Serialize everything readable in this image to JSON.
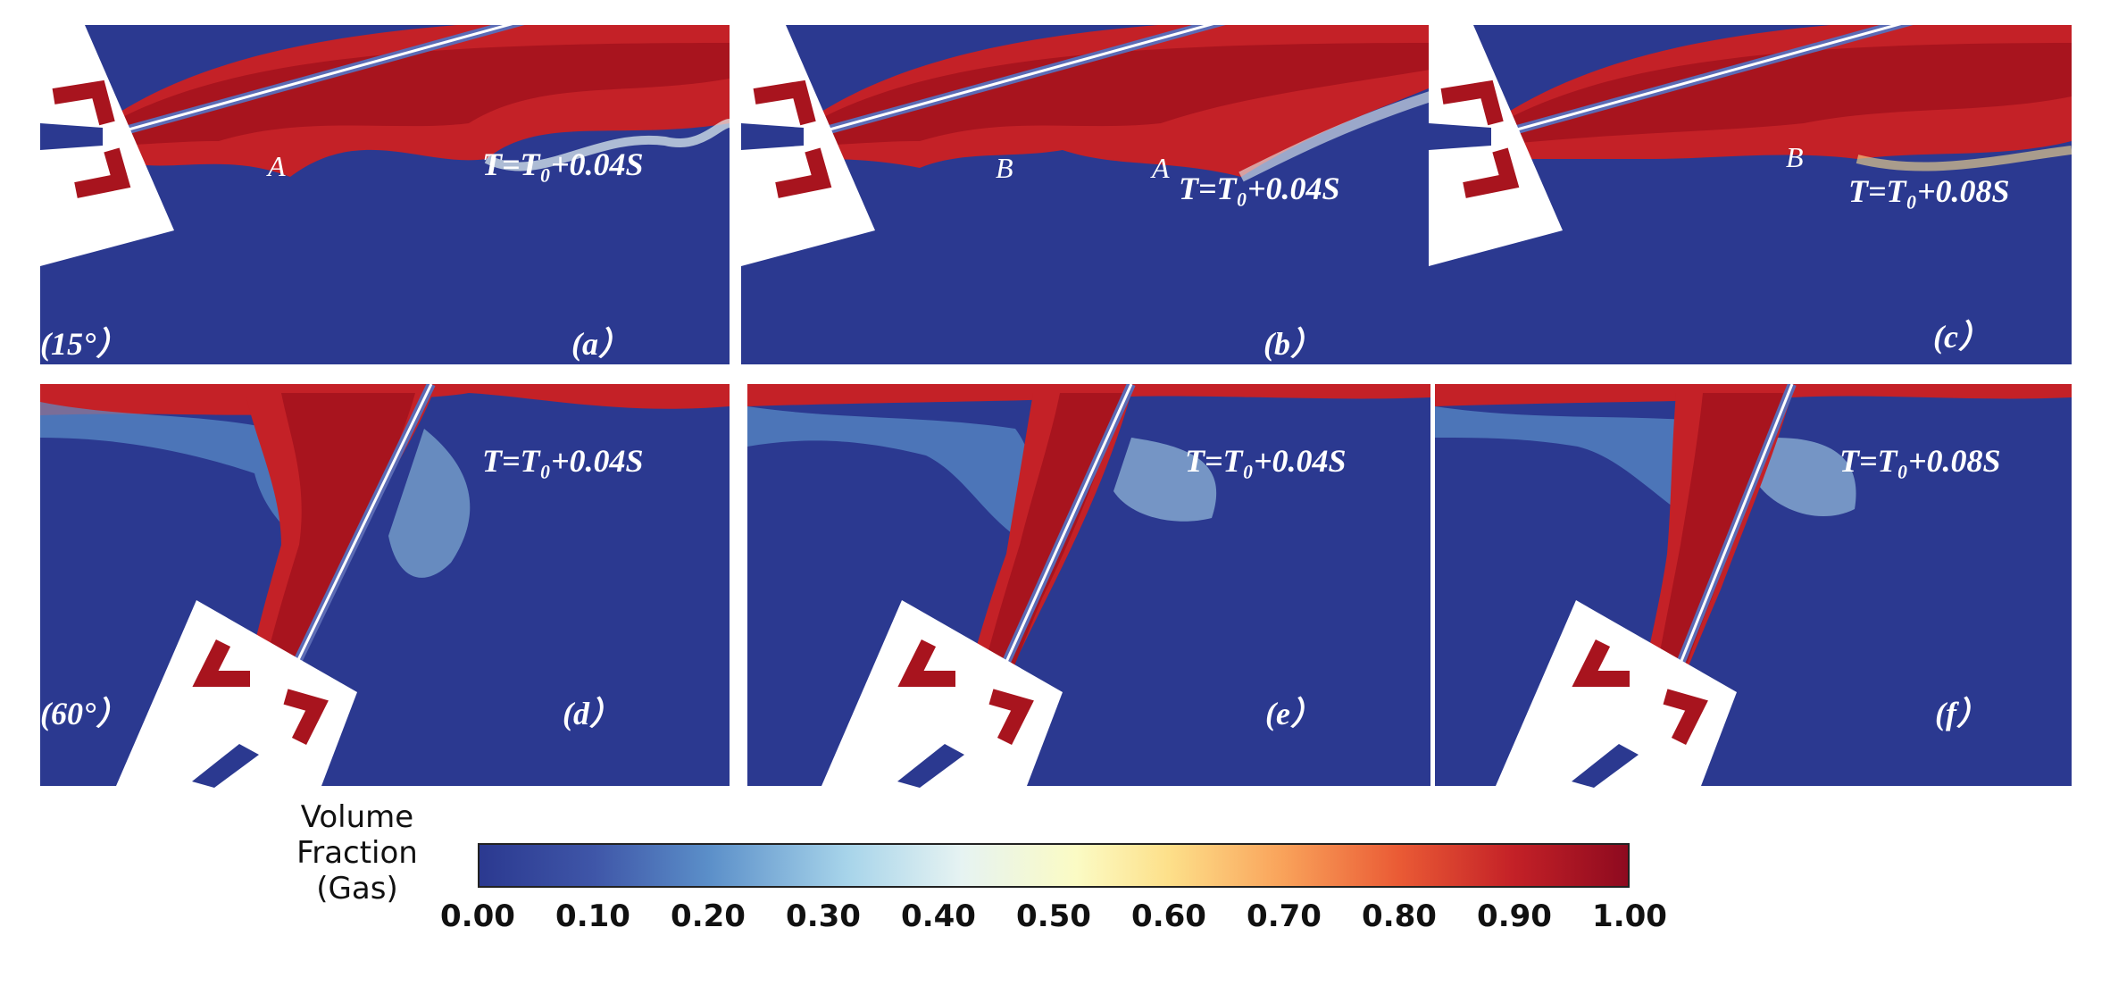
{
  "panels": [
    {
      "id": "a",
      "label": "(a）",
      "time": "T=T₀+0.04S",
      "marks": [
        "A"
      ],
      "angle": "(15°）"
    },
    {
      "id": "b",
      "label": "(b）",
      "time": "T=T₀+0.04S",
      "marks": [
        "B",
        "A"
      ],
      "angle": ""
    },
    {
      "id": "c",
      "label": "(c）",
      "time": "T=T₀+0.08S",
      "marks": [
        "B"
      ],
      "angle": ""
    },
    {
      "id": "d",
      "label": "(d）",
      "time": "T=T₀+0.04S",
      "marks": [],
      "angle": "(60°）"
    },
    {
      "id": "e",
      "label": "(e）",
      "time": "T=T₀+0.04S",
      "marks": [],
      "angle": ""
    },
    {
      "id": "f",
      "label": "(f）",
      "time": "T=T₀+0.08S",
      "marks": [],
      "angle": ""
    }
  ],
  "colorbar": {
    "title": "Volume Fraction (Gas)",
    "ticks": [
      "0.00",
      "0.10",
      "0.20",
      "0.30",
      "0.40",
      "0.50",
      "0.60",
      "0.70",
      "0.80",
      "0.90",
      "1.00"
    ],
    "colors": {
      "low": "#2b3990",
      "mid": "#fbfbc4",
      "high": "#8e0a1f"
    }
  }
}
